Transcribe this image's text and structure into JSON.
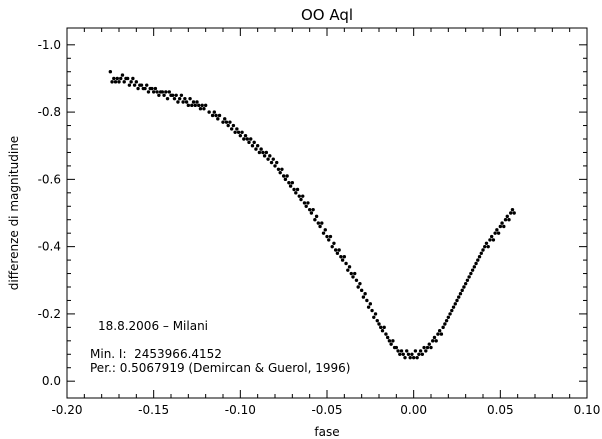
{
  "chart_data": {
    "type": "scatter",
    "title": "OO Aql",
    "xlabel": "fase",
    "ylabel": "differenze di magnitudine",
    "xlim": [
      -0.2,
      0.1
    ],
    "ylim": [
      0.05,
      -1.05
    ],
    "y_inverted": true,
    "grid": false,
    "legend": "none",
    "x_ticks": [
      -0.2,
      -0.15,
      -0.1,
      -0.05,
      0.0,
      0.05,
      0.1
    ],
    "x_tick_labels": [
      "-0.20",
      "-0.15",
      "-0.10",
      "-0.05",
      "0.00",
      "0.05",
      "0.10"
    ],
    "y_ticks": [
      -1.0,
      -0.8,
      -0.6,
      -0.4,
      -0.2,
      0.0
    ],
    "y_tick_labels": [
      "-1.0",
      "-0.8",
      "-0.6",
      "-0.4",
      "-0.2",
      "0.0"
    ],
    "annotations": [
      "18.8.2006 – Milani",
      "Min. I:  2453966.4152",
      "Per.: 0.5067919 (Demircan & Guerol, 1996)"
    ],
    "marker_color": "#000000",
    "points": [
      [
        -0.175,
        -0.92
      ],
      [
        -0.174,
        -0.89
      ],
      [
        -0.173,
        -0.9
      ],
      [
        -0.172,
        -0.89
      ],
      [
        -0.171,
        -0.9
      ],
      [
        -0.17,
        -0.89
      ],
      [
        -0.169,
        -0.9
      ],
      [
        -0.168,
        -0.91
      ],
      [
        -0.167,
        -0.89
      ],
      [
        -0.166,
        -0.9
      ],
      [
        -0.165,
        -0.9
      ],
      [
        -0.164,
        -0.88
      ],
      [
        -0.163,
        -0.89
      ],
      [
        -0.162,
        -0.9
      ],
      [
        -0.161,
        -0.88
      ],
      [
        -0.16,
        -0.89
      ],
      [
        -0.159,
        -0.87
      ],
      [
        -0.158,
        -0.88
      ],
      [
        -0.157,
        -0.88
      ],
      [
        -0.156,
        -0.87
      ],
      [
        -0.155,
        -0.87
      ],
      [
        -0.154,
        -0.88
      ],
      [
        -0.153,
        -0.86
      ],
      [
        -0.152,
        -0.87
      ],
      [
        -0.151,
        -0.87
      ],
      [
        -0.15,
        -0.86
      ],
      [
        -0.149,
        -0.87
      ],
      [
        -0.148,
        -0.86
      ],
      [
        -0.147,
        -0.85
      ],
      [
        -0.146,
        -0.86
      ],
      [
        -0.145,
        -0.86
      ],
      [
        -0.144,
        -0.85
      ],
      [
        -0.143,
        -0.86
      ],
      [
        -0.142,
        -0.84
      ],
      [
        -0.141,
        -0.86
      ],
      [
        -0.14,
        -0.85
      ],
      [
        -0.139,
        -0.85
      ],
      [
        -0.138,
        -0.84
      ],
      [
        -0.137,
        -0.85
      ],
      [
        -0.136,
        -0.83
      ],
      [
        -0.135,
        -0.84
      ],
      [
        -0.134,
        -0.85
      ],
      [
        -0.133,
        -0.83
      ],
      [
        -0.132,
        -0.84
      ],
      [
        -0.131,
        -0.83
      ],
      [
        -0.13,
        -0.82
      ],
      [
        -0.129,
        -0.84
      ],
      [
        -0.128,
        -0.82
      ],
      [
        -0.127,
        -0.83
      ],
      [
        -0.126,
        -0.82
      ],
      [
        -0.125,
        -0.83
      ],
      [
        -0.124,
        -0.82
      ],
      [
        -0.123,
        -0.81
      ],
      [
        -0.122,
        -0.82
      ],
      [
        -0.121,
        -0.81
      ],
      [
        -0.12,
        -0.82
      ],
      [
        -0.118,
        -0.8
      ],
      [
        -0.116,
        -0.79
      ],
      [
        -0.115,
        -0.8
      ],
      [
        -0.114,
        -0.79
      ],
      [
        -0.113,
        -0.78
      ],
      [
        -0.112,
        -0.79
      ],
      [
        -0.11,
        -0.77
      ],
      [
        -0.109,
        -0.78
      ],
      [
        -0.108,
        -0.77
      ],
      [
        -0.107,
        -0.76
      ],
      [
        -0.106,
        -0.77
      ],
      [
        -0.105,
        -0.75
      ],
      [
        -0.104,
        -0.76
      ],
      [
        -0.103,
        -0.74
      ],
      [
        -0.102,
        -0.75
      ],
      [
        -0.101,
        -0.74
      ],
      [
        -0.1,
        -0.73
      ],
      [
        -0.099,
        -0.74
      ],
      [
        -0.098,
        -0.72
      ],
      [
        -0.097,
        -0.73
      ],
      [
        -0.096,
        -0.72
      ],
      [
        -0.095,
        -0.71
      ],
      [
        -0.094,
        -0.72
      ],
      [
        -0.093,
        -0.7
      ],
      [
        -0.092,
        -0.71
      ],
      [
        -0.091,
        -0.69
      ],
      [
        -0.09,
        -0.7
      ],
      [
        -0.089,
        -0.68
      ],
      [
        -0.088,
        -0.69
      ],
      [
        -0.087,
        -0.68
      ],
      [
        -0.086,
        -0.67
      ],
      [
        -0.085,
        -0.68
      ],
      [
        -0.084,
        -0.66
      ],
      [
        -0.083,
        -0.67
      ],
      [
        -0.082,
        -0.65
      ],
      [
        -0.081,
        -0.66
      ],
      [
        -0.08,
        -0.64
      ],
      [
        -0.079,
        -0.65
      ],
      [
        -0.078,
        -0.63
      ],
      [
        -0.077,
        -0.62
      ],
      [
        -0.076,
        -0.63
      ],
      [
        -0.075,
        -0.61
      ],
      [
        -0.074,
        -0.6
      ],
      [
        -0.073,
        -0.61
      ],
      [
        -0.072,
        -0.59
      ],
      [
        -0.071,
        -0.58
      ],
      [
        -0.07,
        -0.59
      ],
      [
        -0.069,
        -0.57
      ],
      [
        -0.068,
        -0.56
      ],
      [
        -0.067,
        -0.57
      ],
      [
        -0.066,
        -0.55
      ],
      [
        -0.065,
        -0.54
      ],
      [
        -0.064,
        -0.55
      ],
      [
        -0.063,
        -0.53
      ],
      [
        -0.062,
        -0.52
      ],
      [
        -0.061,
        -0.53
      ],
      [
        -0.06,
        -0.51
      ],
      [
        -0.059,
        -0.5
      ],
      [
        -0.058,
        -0.51
      ],
      [
        -0.057,
        -0.48
      ],
      [
        -0.056,
        -0.49
      ],
      [
        -0.055,
        -0.47
      ],
      [
        -0.054,
        -0.46
      ],
      [
        -0.053,
        -0.47
      ],
      [
        -0.052,
        -0.44
      ],
      [
        -0.051,
        -0.45
      ],
      [
        -0.05,
        -0.43
      ],
      [
        -0.049,
        -0.42
      ],
      [
        -0.048,
        -0.43
      ],
      [
        -0.047,
        -0.4
      ],
      [
        -0.046,
        -0.41
      ],
      [
        -0.045,
        -0.39
      ],
      [
        -0.044,
        -0.38
      ],
      [
        -0.043,
        -0.39
      ],
      [
        -0.042,
        -0.37
      ],
      [
        -0.041,
        -0.36
      ],
      [
        -0.04,
        -0.37
      ],
      [
        -0.039,
        -0.35
      ],
      [
        -0.038,
        -0.33
      ],
      [
        -0.037,
        -0.34
      ],
      [
        -0.036,
        -0.32
      ],
      [
        -0.035,
        -0.31
      ],
      [
        -0.034,
        -0.32
      ],
      [
        -0.033,
        -0.3
      ],
      [
        -0.032,
        -0.28
      ],
      [
        -0.031,
        -0.29
      ],
      [
        -0.03,
        -0.27
      ],
      [
        -0.029,
        -0.25
      ],
      [
        -0.028,
        -0.26
      ],
      [
        -0.027,
        -0.24
      ],
      [
        -0.026,
        -0.22
      ],
      [
        -0.025,
        -0.23
      ],
      [
        -0.024,
        -0.21
      ],
      [
        -0.023,
        -0.19
      ],
      [
        -0.022,
        -0.2
      ],
      [
        -0.021,
        -0.18
      ],
      [
        -0.02,
        -0.17
      ],
      [
        -0.019,
        -0.16
      ],
      [
        -0.018,
        -0.15
      ],
      [
        -0.017,
        -0.16
      ],
      [
        -0.016,
        -0.14
      ],
      [
        -0.015,
        -0.13
      ],
      [
        -0.014,
        -0.12
      ],
      [
        -0.013,
        -0.11
      ],
      [
        -0.012,
        -0.12
      ],
      [
        -0.011,
        -0.1
      ],
      [
        -0.01,
        -0.1
      ],
      [
        -0.009,
        -0.09
      ],
      [
        -0.008,
        -0.08
      ],
      [
        -0.007,
        -0.09
      ],
      [
        -0.006,
        -0.08
      ],
      [
        -0.005,
        -0.07
      ],
      [
        -0.004,
        -0.09
      ],
      [
        -0.003,
        -0.08
      ],
      [
        -0.002,
        -0.07
      ],
      [
        -0.001,
        -0.08
      ],
      [
        0.0,
        -0.07
      ],
      [
        0.001,
        -0.09
      ],
      [
        0.002,
        -0.07
      ],
      [
        0.003,
        -0.08
      ],
      [
        0.004,
        -0.09
      ],
      [
        0.005,
        -0.08
      ],
      [
        0.006,
        -0.1
      ],
      [
        0.007,
        -0.09
      ],
      [
        0.008,
        -0.1
      ],
      [
        0.009,
        -0.11
      ],
      [
        0.01,
        -0.1
      ],
      [
        0.011,
        -0.12
      ],
      [
        0.012,
        -0.13
      ],
      [
        0.013,
        -0.12
      ],
      [
        0.014,
        -0.14
      ],
      [
        0.015,
        -0.15
      ],
      [
        0.016,
        -0.14
      ],
      [
        0.017,
        -0.16
      ],
      [
        0.018,
        -0.17
      ],
      [
        0.019,
        -0.18
      ],
      [
        0.02,
        -0.19
      ],
      [
        0.021,
        -0.2
      ],
      [
        0.022,
        -0.21
      ],
      [
        0.023,
        -0.22
      ],
      [
        0.024,
        -0.23
      ],
      [
        0.025,
        -0.24
      ],
      [
        0.026,
        -0.25
      ],
      [
        0.027,
        -0.26
      ],
      [
        0.028,
        -0.27
      ],
      [
        0.029,
        -0.28
      ],
      [
        0.03,
        -0.29
      ],
      [
        0.031,
        -0.3
      ],
      [
        0.032,
        -0.31
      ],
      [
        0.033,
        -0.32
      ],
      [
        0.034,
        -0.33
      ],
      [
        0.035,
        -0.34
      ],
      [
        0.036,
        -0.35
      ],
      [
        0.037,
        -0.36
      ],
      [
        0.038,
        -0.37
      ],
      [
        0.039,
        -0.38
      ],
      [
        0.04,
        -0.39
      ],
      [
        0.041,
        -0.4
      ],
      [
        0.042,
        -0.41
      ],
      [
        0.043,
        -0.4
      ],
      [
        0.044,
        -0.42
      ],
      [
        0.045,
        -0.43
      ],
      [
        0.046,
        -0.42
      ],
      [
        0.047,
        -0.44
      ],
      [
        0.048,
        -0.45
      ],
      [
        0.049,
        -0.44
      ],
      [
        0.05,
        -0.46
      ],
      [
        0.051,
        -0.47
      ],
      [
        0.052,
        -0.46
      ],
      [
        0.053,
        -0.48
      ],
      [
        0.054,
        -0.49
      ],
      [
        0.055,
        -0.48
      ],
      [
        0.056,
        -0.5
      ],
      [
        0.057,
        -0.51
      ],
      [
        0.058,
        -0.5
      ]
    ]
  }
}
